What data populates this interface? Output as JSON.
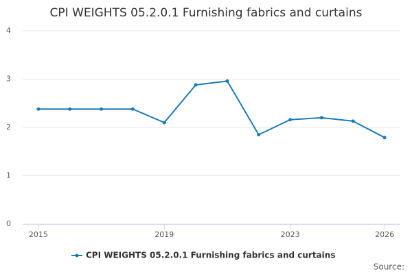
{
  "chart_data": {
    "type": "line",
    "title": "CPI WEIGHTS 05.2.0.1 Furnishing fabrics and curtains",
    "x": [
      2015,
      2016,
      2017,
      2018,
      2019,
      2020,
      2021,
      2022,
      2023,
      2024,
      2025,
      2026
    ],
    "series": [
      {
        "name": "CPI WEIGHTS 05.2.0.1 Furnishing fabrics and curtains",
        "color": "#1a7ab5",
        "values": [
          2.38,
          2.38,
          2.38,
          2.38,
          2.1,
          2.88,
          2.96,
          1.85,
          2.16,
          2.2,
          2.13,
          1.79
        ]
      }
    ],
    "xlim": [
      2014.5,
      2026.5
    ],
    "xticks": [
      2015,
      2019,
      2023,
      2026
    ],
    "ylim": [
      0,
      4
    ],
    "yticks": [
      0,
      1,
      2,
      3,
      4
    ],
    "grid": true,
    "legend": "bottom",
    "source": "Source:"
  }
}
